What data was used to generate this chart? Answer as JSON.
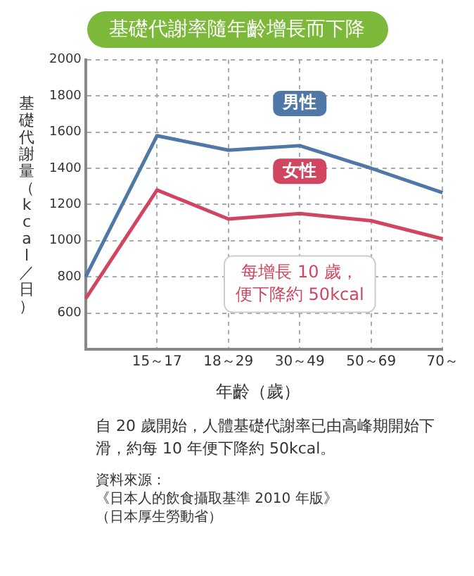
{
  "chart_data": {
    "type": "line",
    "title": "基礎代謝率隨年齡增長而下降",
    "xlabel": "年齡（歲）",
    "ylabel": "基礎代謝量（kcal／日）",
    "categories": [
      null,
      "15～17",
      "18～29",
      "30～49",
      "50～69",
      "70～"
    ],
    "ylim": [
      400,
      2000
    ],
    "yticks": [
      600,
      800,
      1000,
      1200,
      1400,
      1600,
      1800,
      2000
    ],
    "series": [
      {
        "name": "男性",
        "color": "#4f78a8",
        "values": [
          800,
          1580,
          1500,
          1525,
          1400,
          1265
        ]
      },
      {
        "name": "女性",
        "color": "#d0455f",
        "values": [
          680,
          1280,
          1120,
          1150,
          1110,
          1010
        ]
      }
    ],
    "grid": true,
    "marker": "none",
    "line_style": "solid",
    "legend": false,
    "annotations": [
      "每增長 10 歲，便下降約 50kcal",
      "自 20 歲開始，人體基礎代謝率已由高峰期開始下滑，約每 10 年便下降約 50kcal。",
      "資料來源：",
      "《日本人的飲食攝取基準 2010 年版》",
      "（日本厚生勞動省）"
    ]
  }
}
